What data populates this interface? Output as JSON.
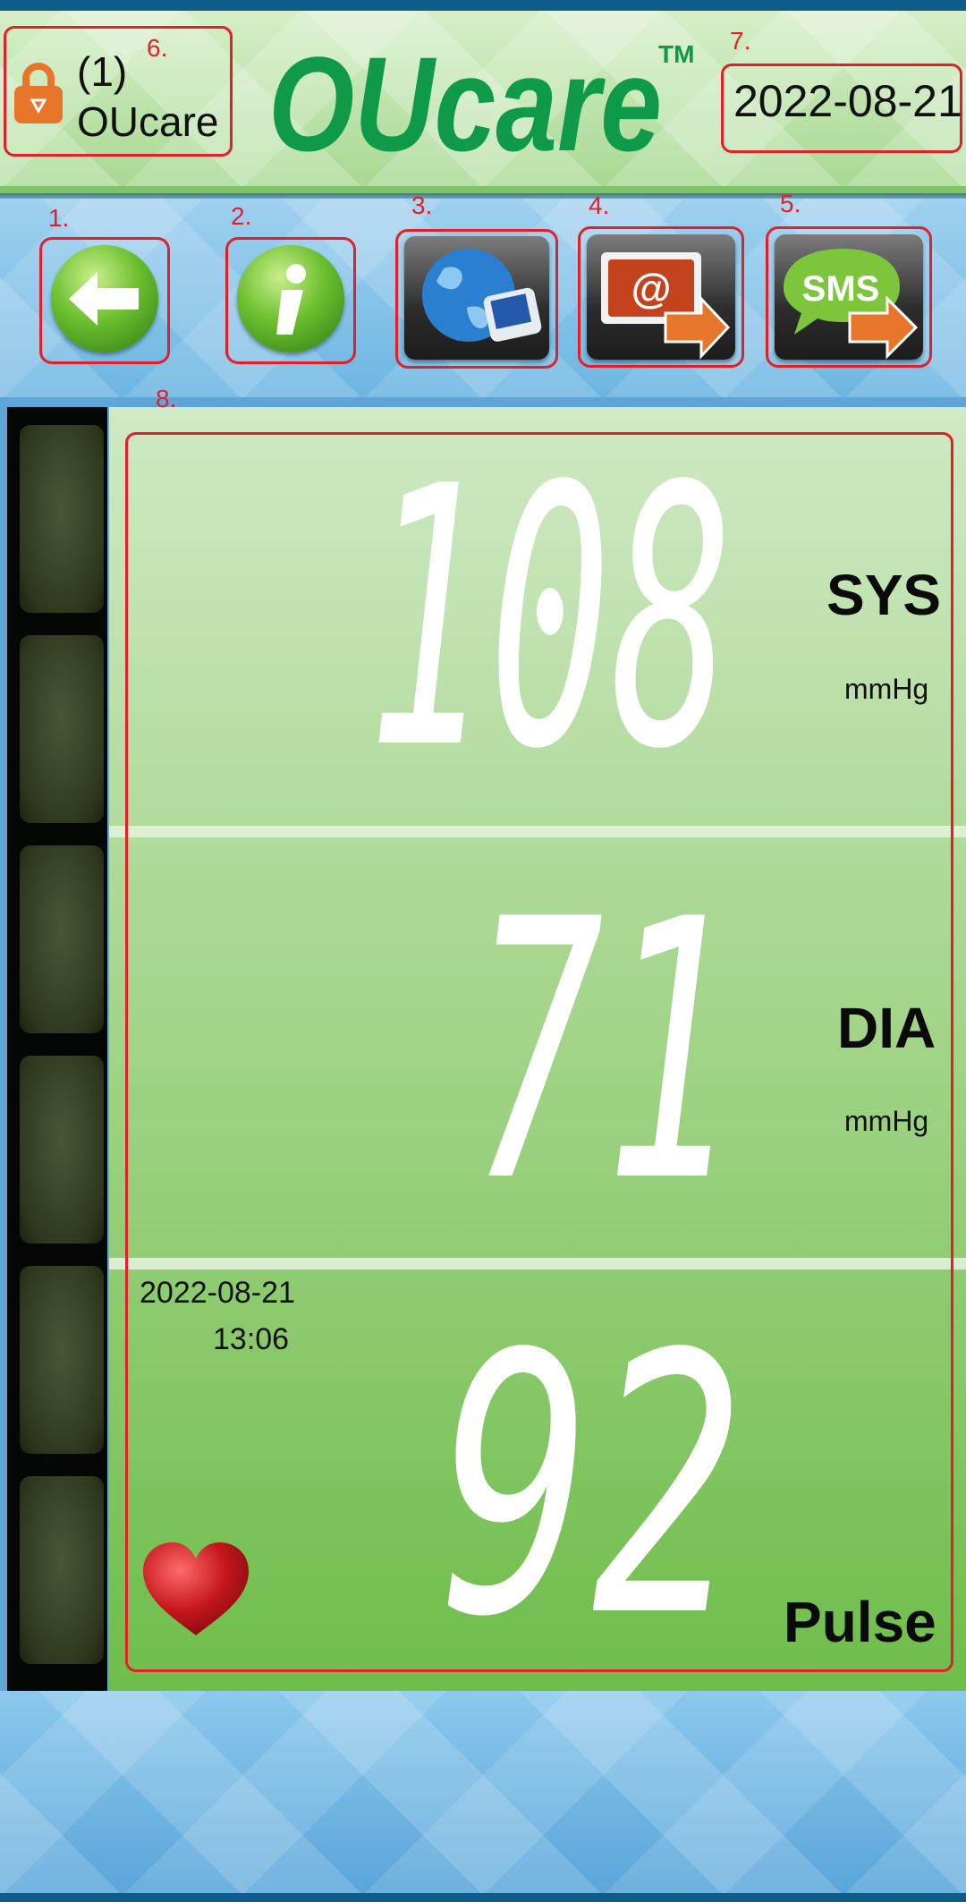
{
  "header": {
    "user_index": "(1)",
    "user_name": "OUcare",
    "logo_text": "OUcare",
    "logo_tm": "TM",
    "date": "2022-08-21",
    "user_marker": "6.",
    "date_marker": "7."
  },
  "toolbar": {
    "buttons": [
      {
        "marker": "1.",
        "icon": "back-arrow-icon"
      },
      {
        "marker": "2.",
        "icon": "info-icon"
      },
      {
        "marker": "3.",
        "icon": "globe-computer-icon"
      },
      {
        "marker": "4.",
        "icon": "email-send-icon"
      },
      {
        "marker": "5.",
        "icon": "sms-send-icon",
        "label": "SMS"
      }
    ]
  },
  "reading": {
    "marker": "8.",
    "sys": {
      "value": "108",
      "label": "SYS",
      "unit": "mmHg"
    },
    "dia": {
      "value": "71",
      "label": "DIA",
      "unit": "mmHg"
    },
    "pulse": {
      "value": "92",
      "label": "Pulse"
    },
    "date": "2022-08-21",
    "time": "13:06"
  },
  "colors": {
    "marker_red": "#e3202a",
    "logo_green": "#0e9a48",
    "panel_green": "#6ebd4a",
    "sms_orange": "#e8762a"
  }
}
